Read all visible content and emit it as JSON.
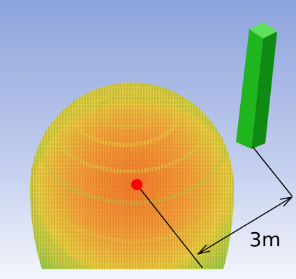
{
  "annotation": {
    "label": "3m"
  }
}
